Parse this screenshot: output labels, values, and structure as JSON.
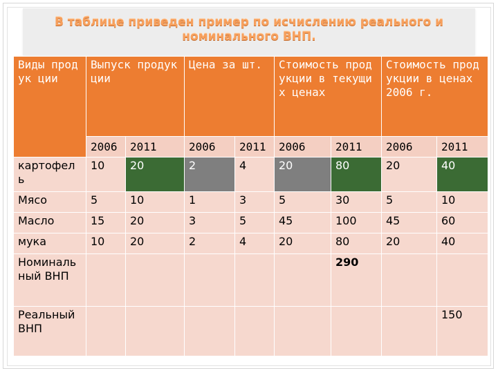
{
  "title": "В таблице приведен пример по исчислению реального и номинального ВНП.",
  "colors": {
    "header": "#ed7d31",
    "cell_light": "#f6d8ce",
    "cell_green": "#3b6b34",
    "cell_gray": "#7f7f7f",
    "title_text": "#f7a05d"
  },
  "table": {
    "headers": {
      "types": "Виды продук ции",
      "output": "Выпуск продукции",
      "price": "Цена за шт.",
      "value_current": "Стоимость продукции в текущих ценах",
      "value_2006": "Стоимость продукции в ценах 2006 г."
    },
    "years": [
      "2006",
      "2011",
      "2006",
      "2011",
      "2006",
      "2011",
      "2006",
      "2011"
    ],
    "rows": [
      {
        "name": "картофел ь",
        "cells": [
          "10",
          "20",
          "2",
          "4",
          "20",
          "80",
          "20",
          "40"
        ]
      },
      {
        "name": "Мясо",
        "cells": [
          "5",
          "10",
          "1",
          "3",
          "5",
          "30",
          "5",
          "10"
        ]
      },
      {
        "name": "Масло",
        "cells": [
          "15",
          "20",
          "3",
          "5",
          "45",
          "100",
          "45",
          "60"
        ]
      },
      {
        "name": "мука",
        "cells": [
          "10",
          "20",
          "2",
          "4",
          "20",
          "80",
          "20",
          "40"
        ]
      }
    ],
    "nominal": {
      "label": "Номиналь ный ВНП",
      "value": "290"
    },
    "real": {
      "label": "Реальный ВНП",
      "value": "150"
    }
  }
}
